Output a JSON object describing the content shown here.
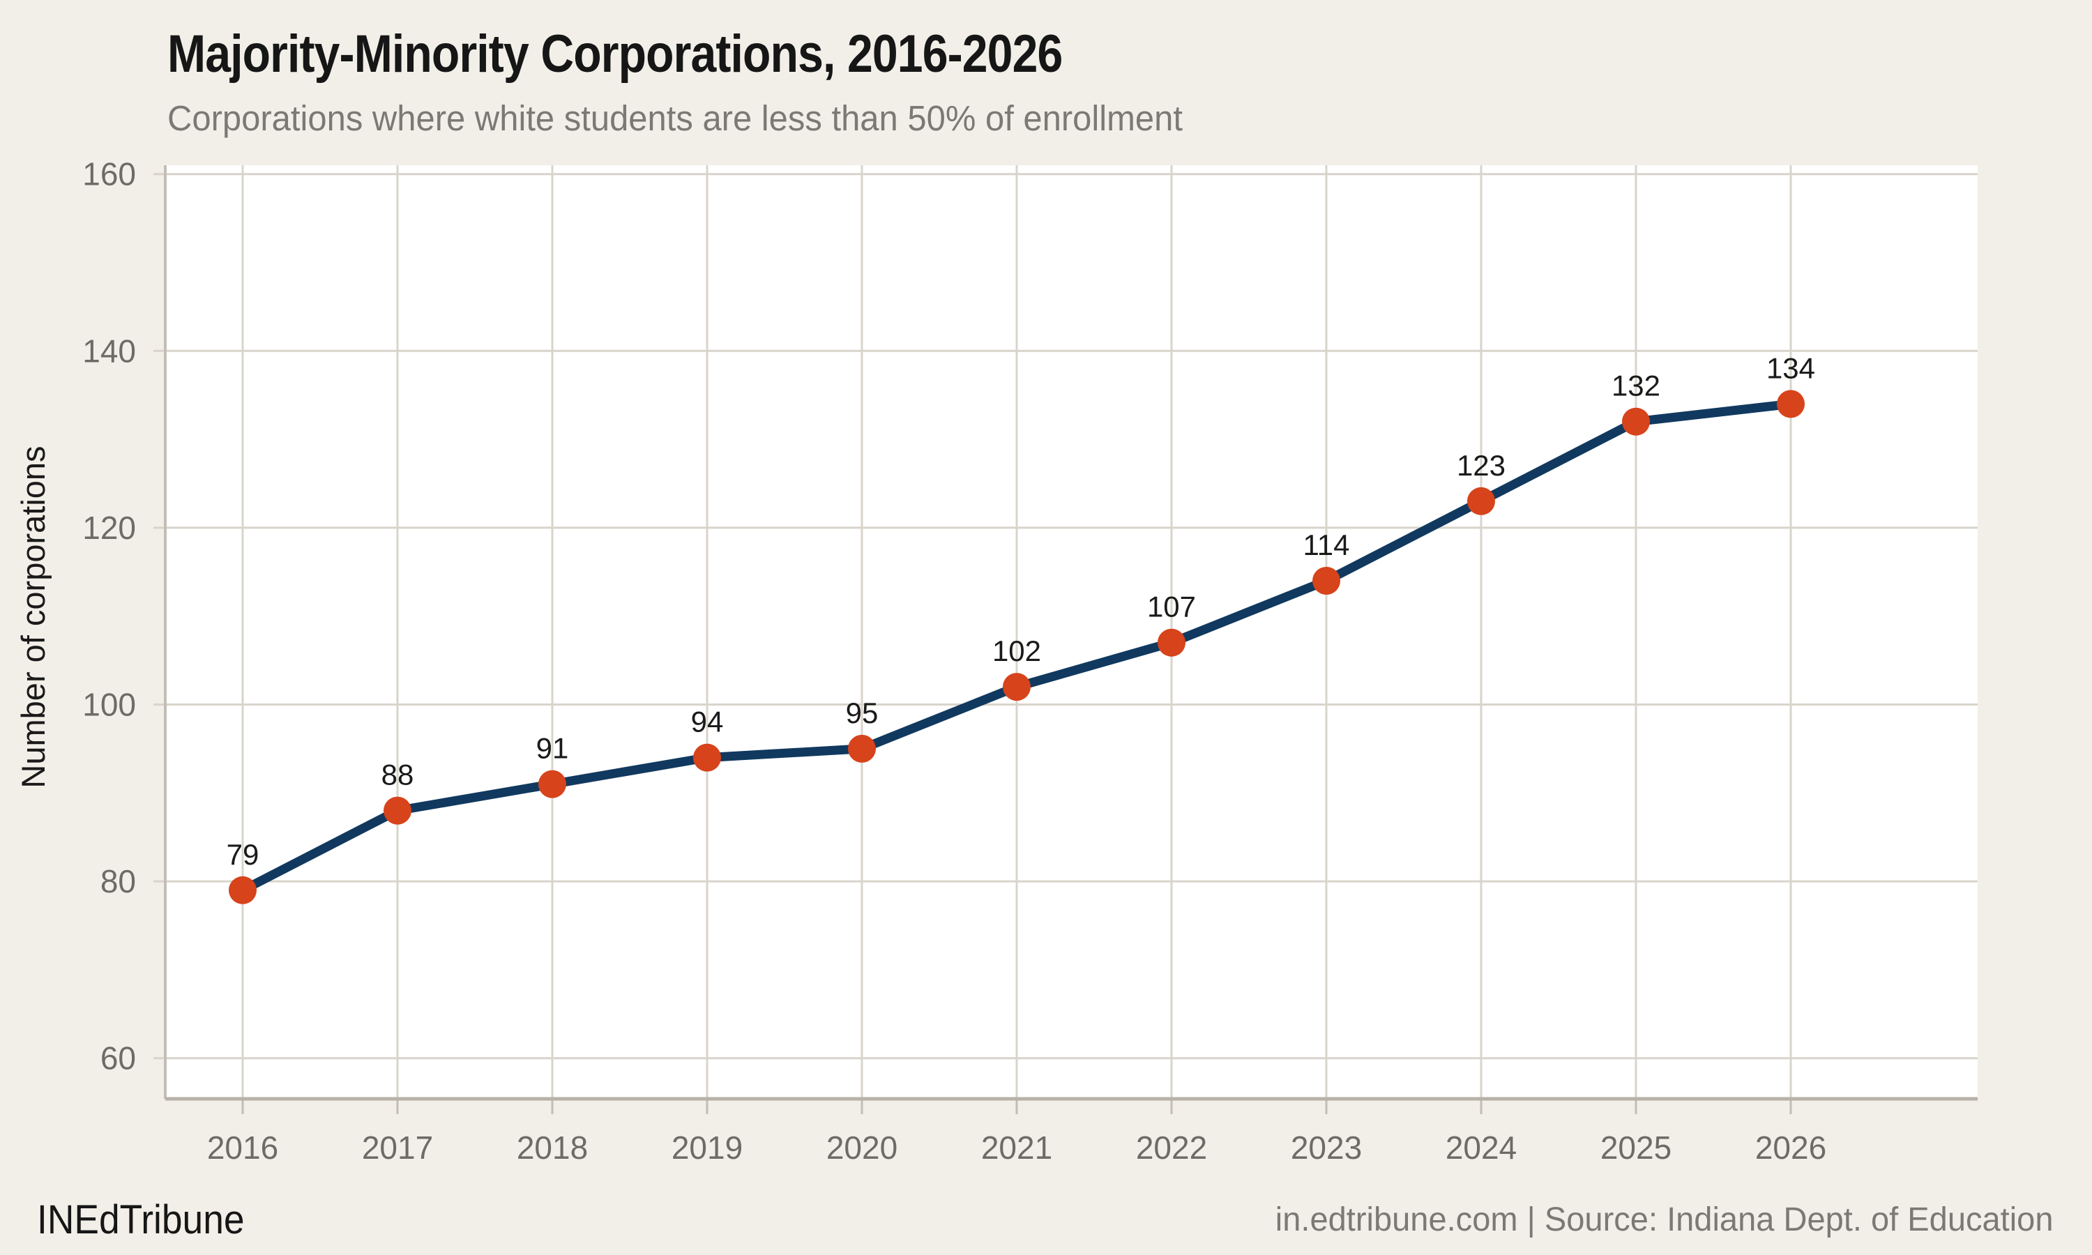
{
  "header": {
    "title": "Majority-Minority Corporations, 2016-2026",
    "subtitle": "Corporations where white students are less than 50% of enrollment"
  },
  "footer": {
    "brand": "INEdTribune",
    "attribution": "in.edtribune.com | Source: Indiana Dept. of Education"
  },
  "colors": {
    "background": "#f2efe8",
    "plot_background": "#ffffff",
    "grid": "#d9d4cb",
    "axis_y": "#c3beb5",
    "axis_x": "#b7b2a9",
    "tick_label": "#6e6b66",
    "title_text": "#161616",
    "subtitle_text": "#7c7974",
    "value_label": "#1a1a1a",
    "ylabel_text": "#1a1a1a",
    "line": "#11395f",
    "marker": "#d7431b"
  },
  "chart_data": {
    "type": "line",
    "title": "Majority-Minority Corporations, 2016-2026",
    "subtitle": "Corporations where white students are less than 50% of enrollment",
    "categories": [
      "2016",
      "2017",
      "2018",
      "2019",
      "2020",
      "2021",
      "2022",
      "2023",
      "2024",
      "2025",
      "2026"
    ],
    "values": [
      79,
      88,
      91,
      94,
      95,
      102,
      107,
      114,
      123,
      132,
      134
    ],
    "xlabel": "",
    "ylabel": "Number of corporations",
    "ylim": [
      55.4,
      161
    ],
    "yticks": [
      60,
      80,
      100,
      120,
      140,
      160
    ],
    "grid": "on",
    "legend": "none",
    "show_point_labels": true
  }
}
